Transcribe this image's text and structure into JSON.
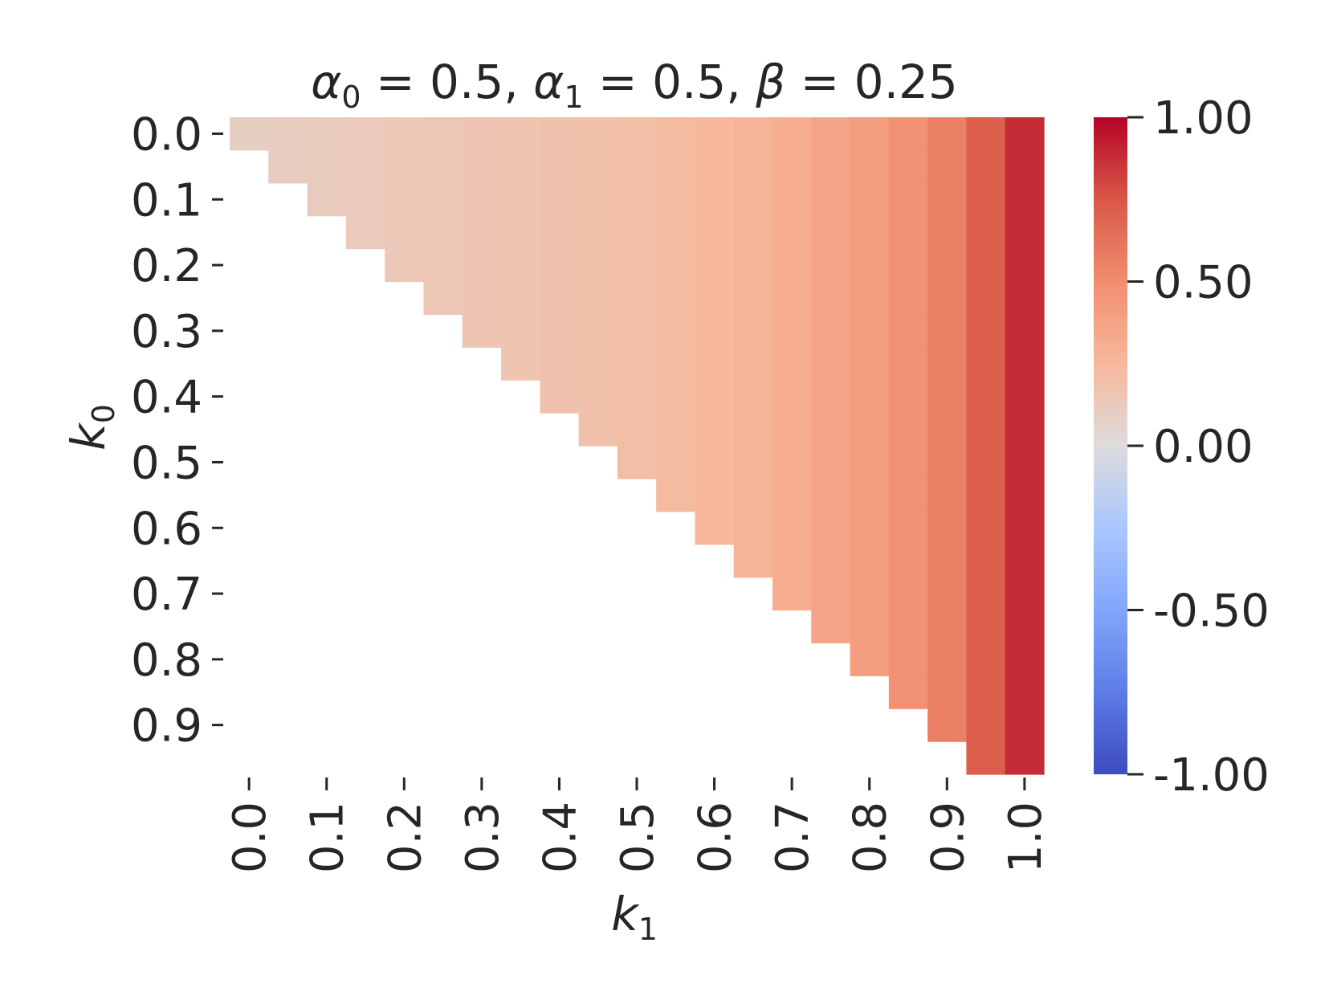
{
  "chart_data": {
    "type": "heatmap",
    "title": "α₀ = 0.5, α₁ = 0.5, β = 0.25",
    "title_parts": {
      "a0_sym": "α",
      "a0_sub": "0",
      "a0_val": " = 0.5, ",
      "a1_sym": "α",
      "a1_sub": "1",
      "a1_val": " = 0.5, ",
      "b_sym": "β",
      "b_val": " = 0.25"
    },
    "xlabel": {
      "sym": "k",
      "sub": "1"
    },
    "ylabel": {
      "sym": "k",
      "sub": "0"
    },
    "x_tick_labels": [
      "0.0",
      "0.1",
      "0.2",
      "0.3",
      "0.4",
      "0.5",
      "0.6",
      "0.7",
      "0.8",
      "0.9",
      "1.0"
    ],
    "y_tick_labels": [
      "0.0",
      "0.1",
      "0.2",
      "0.3",
      "0.4",
      "0.5",
      "0.6",
      "0.7",
      "0.8",
      "0.9"
    ],
    "n_cols": 21,
    "n_rows": 20,
    "column_values": [
      0.1,
      0.11,
      0.12,
      0.13,
      0.14,
      0.15,
      0.16,
      0.17,
      0.18,
      0.19,
      0.21,
      0.23,
      0.25,
      0.28,
      0.32,
      0.36,
      0.41,
      0.48,
      0.56,
      0.72,
      0.88
    ],
    "row_start_column": [
      0,
      1,
      2,
      3,
      4,
      5,
      6,
      7,
      8,
      9,
      10,
      11,
      12,
      13,
      14,
      15,
      16,
      17,
      18,
      19
    ],
    "mask": "cells with column index < row index are blank",
    "colormap": "coolwarm",
    "vmin": -1.0,
    "vmax": 1.0,
    "colorbar_tick_labels": [
      "1.00",
      "0.50",
      "0.00",
      "-0.50",
      "-1.00"
    ],
    "colorbar_ticks": [
      1.0,
      0.5,
      0.0,
      -0.5,
      -1.0
    ],
    "grid": false
  }
}
